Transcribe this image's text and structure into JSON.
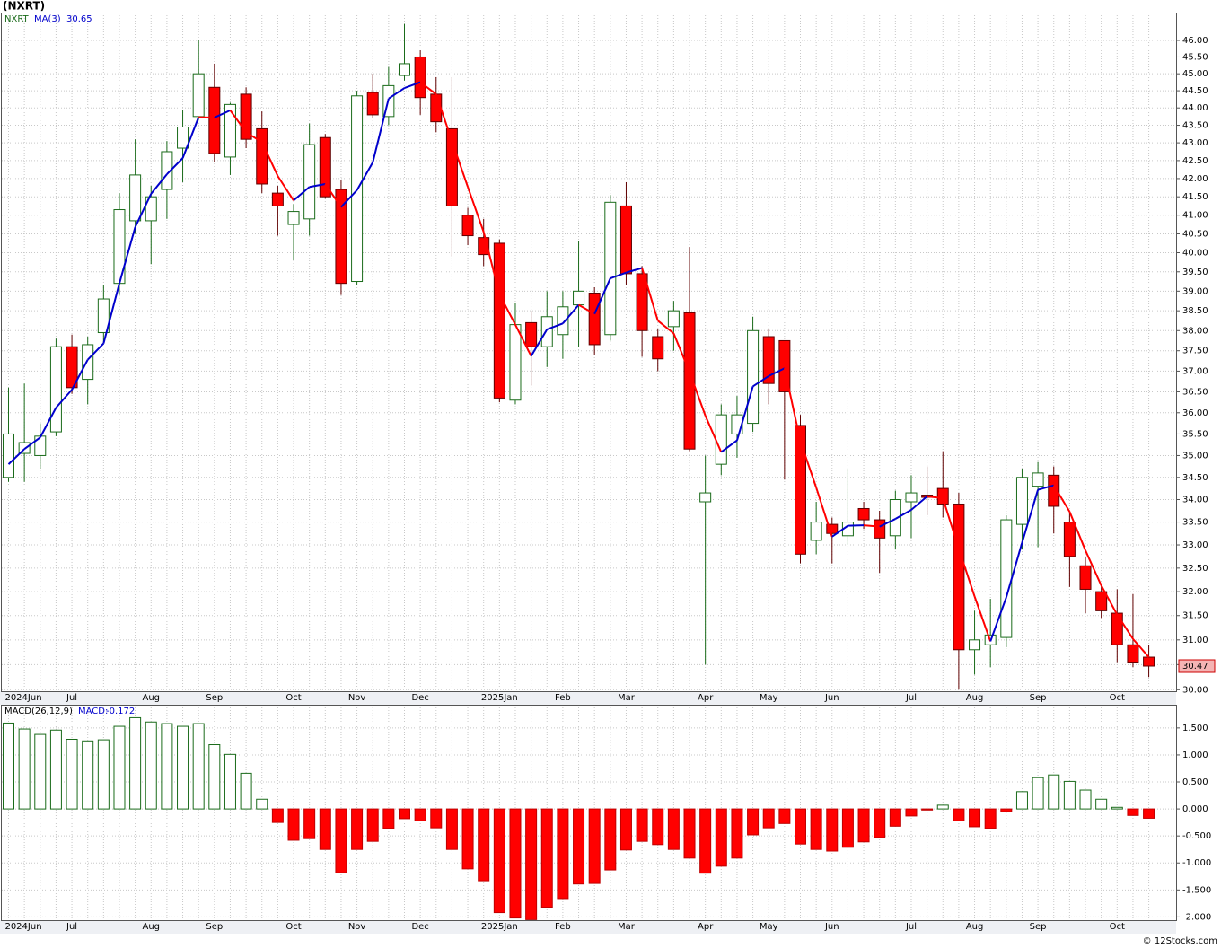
{
  "chart_data": [
    {
      "type": "candlestick",
      "title": "(NXRT)",
      "symbol": "NXRT",
      "categories": [
        "2024Jun",
        null,
        null,
        null,
        "Jul",
        null,
        null,
        null,
        null,
        "Aug",
        null,
        null,
        null,
        "Sep",
        null,
        null,
        null,
        null,
        "Oct",
        null,
        null,
        null,
        "Nov",
        null,
        null,
        null,
        "Dec",
        null,
        null,
        null,
        null,
        "2025Jan",
        null,
        null,
        null,
        "Feb",
        null,
        null,
        null,
        "Mar",
        null,
        null,
        null,
        null,
        "Apr",
        null,
        null,
        null,
        "May",
        null,
        null,
        null,
        "Jun",
        null,
        null,
        null,
        null,
        "Jul",
        null,
        null,
        null,
        "Aug",
        null,
        null,
        null,
        "Sep",
        null,
        null,
        null,
        null,
        "Oct",
        null,
        null
      ],
      "open": [
        34.5,
        35.05,
        35.0,
        35.55,
        37.6,
        36.8,
        37.95,
        39.2,
        40.85,
        40.85,
        41.7,
        42.85,
        43.75,
        44.6,
        42.6,
        44.4,
        43.4,
        41.6,
        40.75,
        40.9,
        43.15,
        41.7,
        39.25,
        44.45,
        43.75,
        44.95,
        45.5,
        44.4,
        43.4,
        41.0,
        40.4,
        40.25,
        36.3,
        38.2,
        37.6,
        37.9,
        38.65,
        38.95,
        37.9,
        41.25,
        39.45,
        37.85,
        38.1,
        38.45,
        33.95,
        34.8,
        35.5,
        35.75,
        37.85,
        37.75,
        35.7,
        33.1,
        33.45,
        33.2,
        33.8,
        33.55,
        33.2,
        33.95,
        34.1,
        34.25,
        33.9,
        30.8,
        30.9,
        31.05,
        33.45,
        34.3,
        34.55,
        33.5,
        32.55,
        32.0,
        31.55,
        30.9,
        30.65
      ],
      "high": [
        36.6,
        36.7,
        35.75,
        37.8,
        37.9,
        37.85,
        39.15,
        41.6,
        43.1,
        41.8,
        43.05,
        43.95,
        46.0,
        45.3,
        44.15,
        44.6,
        43.9,
        41.8,
        41.3,
        43.55,
        43.25,
        41.95,
        44.5,
        45.0,
        45.2,
        46.5,
        45.7,
        44.9,
        44.9,
        41.2,
        40.9,
        40.35,
        38.7,
        38.5,
        39.0,
        39.0,
        40.3,
        39.1,
        41.55,
        41.9,
        39.65,
        38.05,
        38.75,
        40.15,
        35.0,
        36.2,
        36.4,
        38.35,
        38.05,
        37.75,
        35.95,
        33.95,
        33.6,
        34.7,
        33.95,
        33.75,
        34.2,
        34.55,
        34.75,
        35.1,
        34.15,
        31.6,
        31.85,
        33.65,
        34.7,
        34.85,
        34.75,
        33.7,
        32.75,
        32.15,
        32.05,
        31.95,
        30.9
      ],
      "low": [
        34.4,
        34.4,
        34.7,
        35.45,
        36.45,
        36.2,
        37.7,
        38.9,
        40.5,
        39.7,
        40.9,
        41.9,
        43.65,
        42.45,
        42.1,
        42.85,
        41.6,
        40.45,
        39.8,
        40.45,
        41.45,
        38.9,
        39.15,
        43.7,
        43.5,
        44.8,
        43.8,
        43.3,
        39.9,
        40.2,
        39.65,
        36.25,
        36.2,
        36.65,
        37.1,
        37.3,
        37.6,
        37.4,
        37.75,
        39.15,
        37.35,
        37.0,
        37.5,
        35.1,
        30.5,
        34.55,
        34.95,
        35.55,
        36.2,
        34.45,
        32.6,
        32.8,
        32.6,
        33.0,
        33.35,
        32.4,
        32.9,
        33.15,
        33.65,
        33.6,
        30.0,
        30.3,
        30.45,
        30.85,
        32.9,
        32.95,
        33.25,
        32.1,
        31.55,
        31.45,
        30.55,
        30.45,
        30.25
      ],
      "close": [
        35.5,
        35.3,
        35.45,
        37.6,
        36.6,
        37.65,
        38.8,
        41.15,
        42.1,
        41.5,
        42.75,
        43.45,
        45.0,
        42.7,
        44.1,
        43.1,
        41.85,
        41.25,
        41.1,
        42.95,
        41.5,
        39.2,
        44.35,
        43.8,
        44.65,
        45.3,
        44.3,
        43.6,
        41.25,
        40.45,
        39.95,
        36.35,
        38.15,
        37.6,
        38.35,
        38.6,
        39.0,
        37.65,
        41.35,
        39.45,
        38.0,
        37.3,
        38.5,
        35.15,
        34.15,
        35.95,
        35.95,
        38.0,
        36.7,
        36.5,
        32.8,
        33.5,
        33.25,
        33.5,
        33.55,
        33.15,
        34.0,
        34.15,
        34.05,
        33.9,
        30.8,
        31.0,
        31.1,
        33.55,
        34.5,
        34.6,
        33.85,
        32.75,
        32.05,
        31.6,
        30.9,
        30.55,
        30.47
      ],
      "up_color": "#1a6b1a",
      "down_color": "#ff0000",
      "ma": {
        "name": "MA(3)",
        "up_color": "#0000cc",
        "down_color": "#ff0000",
        "values": [
          34.8,
          35.15,
          35.42,
          36.12,
          36.55,
          37.28,
          37.68,
          39.2,
          40.68,
          41.58,
          42.12,
          42.57,
          43.73,
          43.72,
          43.93,
          43.3,
          43.02,
          42.07,
          41.4,
          41.77,
          41.85,
          41.22,
          41.68,
          42.45,
          44.27,
          44.58,
          44.75,
          44.4,
          43.05,
          41.77,
          40.55,
          38.92,
          38.15,
          37.37,
          38.03,
          38.18,
          38.65,
          38.42,
          39.33,
          39.48,
          39.6,
          38.25,
          37.93,
          36.98,
          35.93,
          35.08,
          35.35,
          36.63,
          36.88,
          37.07,
          35.33,
          34.27,
          33.18,
          33.42,
          33.43,
          33.4,
          33.57,
          33.77,
          34.07,
          34.03,
          32.92,
          31.9,
          30.97,
          31.88,
          33.05,
          34.22,
          34.32,
          33.73,
          32.88,
          32.13,
          31.52,
          31.02,
          30.65
        ]
      },
      "log": true,
      "grid": true,
      "ylim": [
        29.97,
        46.85
      ],
      "yticks": [
        {
          "value": 30,
          "label": "30.00"
        },
        {
          "value": 30.5,
          "label": "30.50"
        },
        {
          "value": 31,
          "label": "31.00"
        },
        {
          "value": 31.5,
          "label": "31.50"
        },
        {
          "value": 32,
          "label": "32.00"
        },
        {
          "value": 32.5,
          "label": "32.50"
        },
        {
          "value": 33,
          "label": "33.00"
        },
        {
          "value": 33.5,
          "label": "33.50"
        },
        {
          "value": 34,
          "label": "34.00"
        },
        {
          "value": 34.5,
          "label": "34.50"
        },
        {
          "value": 35,
          "label": "35.00"
        },
        {
          "value": 35.5,
          "label": "35.50"
        },
        {
          "value": 36,
          "label": "36.00"
        },
        {
          "value": 36.5,
          "label": "36.50"
        },
        {
          "value": 37,
          "label": "37.00"
        },
        {
          "value": 37.5,
          "label": "37.50"
        },
        {
          "value": 38,
          "label": "38.00"
        },
        {
          "value": 38.5,
          "label": "38.50"
        },
        {
          "value": 39,
          "label": "39.00"
        },
        {
          "value": 39.5,
          "label": "39.50"
        },
        {
          "value": 40,
          "label": "40.00"
        },
        {
          "value": 40.5,
          "label": "40.50"
        },
        {
          "value": 41,
          "label": "41.00"
        },
        {
          "value": 41.5,
          "label": "41.50"
        },
        {
          "value": 42,
          "label": "42.00"
        },
        {
          "value": 42.5,
          "label": "42.50"
        },
        {
          "value": 43,
          "label": "43.00"
        },
        {
          "value": 43.5,
          "label": "43.50"
        },
        {
          "value": 44,
          "label": "44.00"
        },
        {
          "value": 44.5,
          "label": "44.50"
        },
        {
          "value": 45,
          "label": "45.00"
        },
        {
          "value": 45.5,
          "label": "45.50"
        },
        {
          "value": 46,
          "label": "46.00"
        }
      ]
    },
    {
      "type": "bar",
      "name": "MACD(26,12,9)",
      "label": "MACD:",
      "categories": [
        "2024Jun",
        null,
        null,
        null,
        "Jul",
        null,
        null,
        null,
        null,
        "Aug",
        null,
        null,
        null,
        "Sep",
        null,
        null,
        null,
        null,
        "Oct",
        null,
        null,
        null,
        "Nov",
        null,
        null,
        null,
        "Dec",
        null,
        null,
        null,
        null,
        "2025Jan",
        null,
        null,
        null,
        "Feb",
        null,
        null,
        null,
        "Mar",
        null,
        null,
        null,
        null,
        "Apr",
        null,
        null,
        null,
        "May",
        null,
        null,
        null,
        "Jun",
        null,
        null,
        null,
        null,
        "Jul",
        null,
        null,
        null,
        "Aug",
        null,
        null,
        null,
        "Sep",
        null,
        null,
        null,
        null,
        "Oct",
        null,
        null
      ],
      "values": [
        1.59,
        1.48,
        1.38,
        1.46,
        1.29,
        1.26,
        1.28,
        1.53,
        1.69,
        1.61,
        1.58,
        1.53,
        1.58,
        1.19,
        1.01,
        0.66,
        0.18,
        -0.25,
        -0.58,
        -0.55,
        -0.75,
        -1.18,
        -0.75,
        -0.6,
        -0.36,
        -0.18,
        -0.22,
        -0.35,
        -0.75,
        -1.11,
        -1.33,
        -1.92,
        -2.02,
        -2.05,
        -1.82,
        -1.66,
        -1.39,
        -1.38,
        -1.13,
        -0.76,
        -0.6,
        -0.66,
        -0.75,
        -0.91,
        -1.19,
        -1.06,
        -0.91,
        -0.48,
        -0.35,
        -0.27,
        -0.65,
        -0.75,
        -0.78,
        -0.71,
        -0.61,
        -0.53,
        -0.32,
        -0.13,
        -0.02,
        0.07,
        -0.22,
        -0.33,
        -0.36,
        -0.05,
        0.32,
        0.58,
        0.63,
        0.51,
        0.35,
        0.18,
        0.03,
        -0.12,
        -0.172
      ],
      "up_color": "#1a6b1a",
      "down_color": "#ff0000",
      "grid": true,
      "ylim": [
        -2.06,
        1.93
      ],
      "yticks": [
        {
          "value": -2,
          "label": "-2.000"
        },
        {
          "value": -1.5,
          "label": "-1.500"
        },
        {
          "value": -1,
          "label": "-1.000"
        },
        {
          "value": -0.5,
          "label": "-0.500"
        },
        {
          "value": 0,
          "label": "0.000"
        },
        {
          "value": 0.5,
          "label": "0.500"
        },
        {
          "value": 1,
          "label": "1.000"
        },
        {
          "value": 1.5,
          "label": "1.500"
        }
      ]
    }
  ],
  "footer": "© 12Stocks.com"
}
